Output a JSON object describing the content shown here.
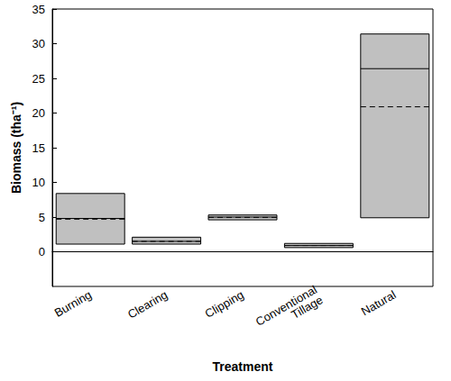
{
  "chart_data": {
    "type": "box",
    "x_label": "Treatment",
    "y_label": "Biomass (tha⁻¹)",
    "categories": [
      "Burning",
      "Clearing",
      "Clipping",
      "Conventional Tillage",
      "Natural"
    ],
    "low": [
      1.1,
      1.1,
      4.6,
      0.6,
      4.9
    ],
    "high": [
      8.4,
      2.1,
      5.3,
      1.2,
      31.4
    ],
    "median": [
      4.8,
      1.5,
      5.0,
      0.9,
      26.4
    ],
    "mean": [
      4.7,
      1.5,
      4.95,
      0.9,
      20.9
    ],
    "color": "#c0c0c0",
    "ylim": [
      -5,
      35
    ],
    "yticks": [
      0,
      5,
      10,
      15,
      20,
      25,
      30,
      35
    ]
  }
}
